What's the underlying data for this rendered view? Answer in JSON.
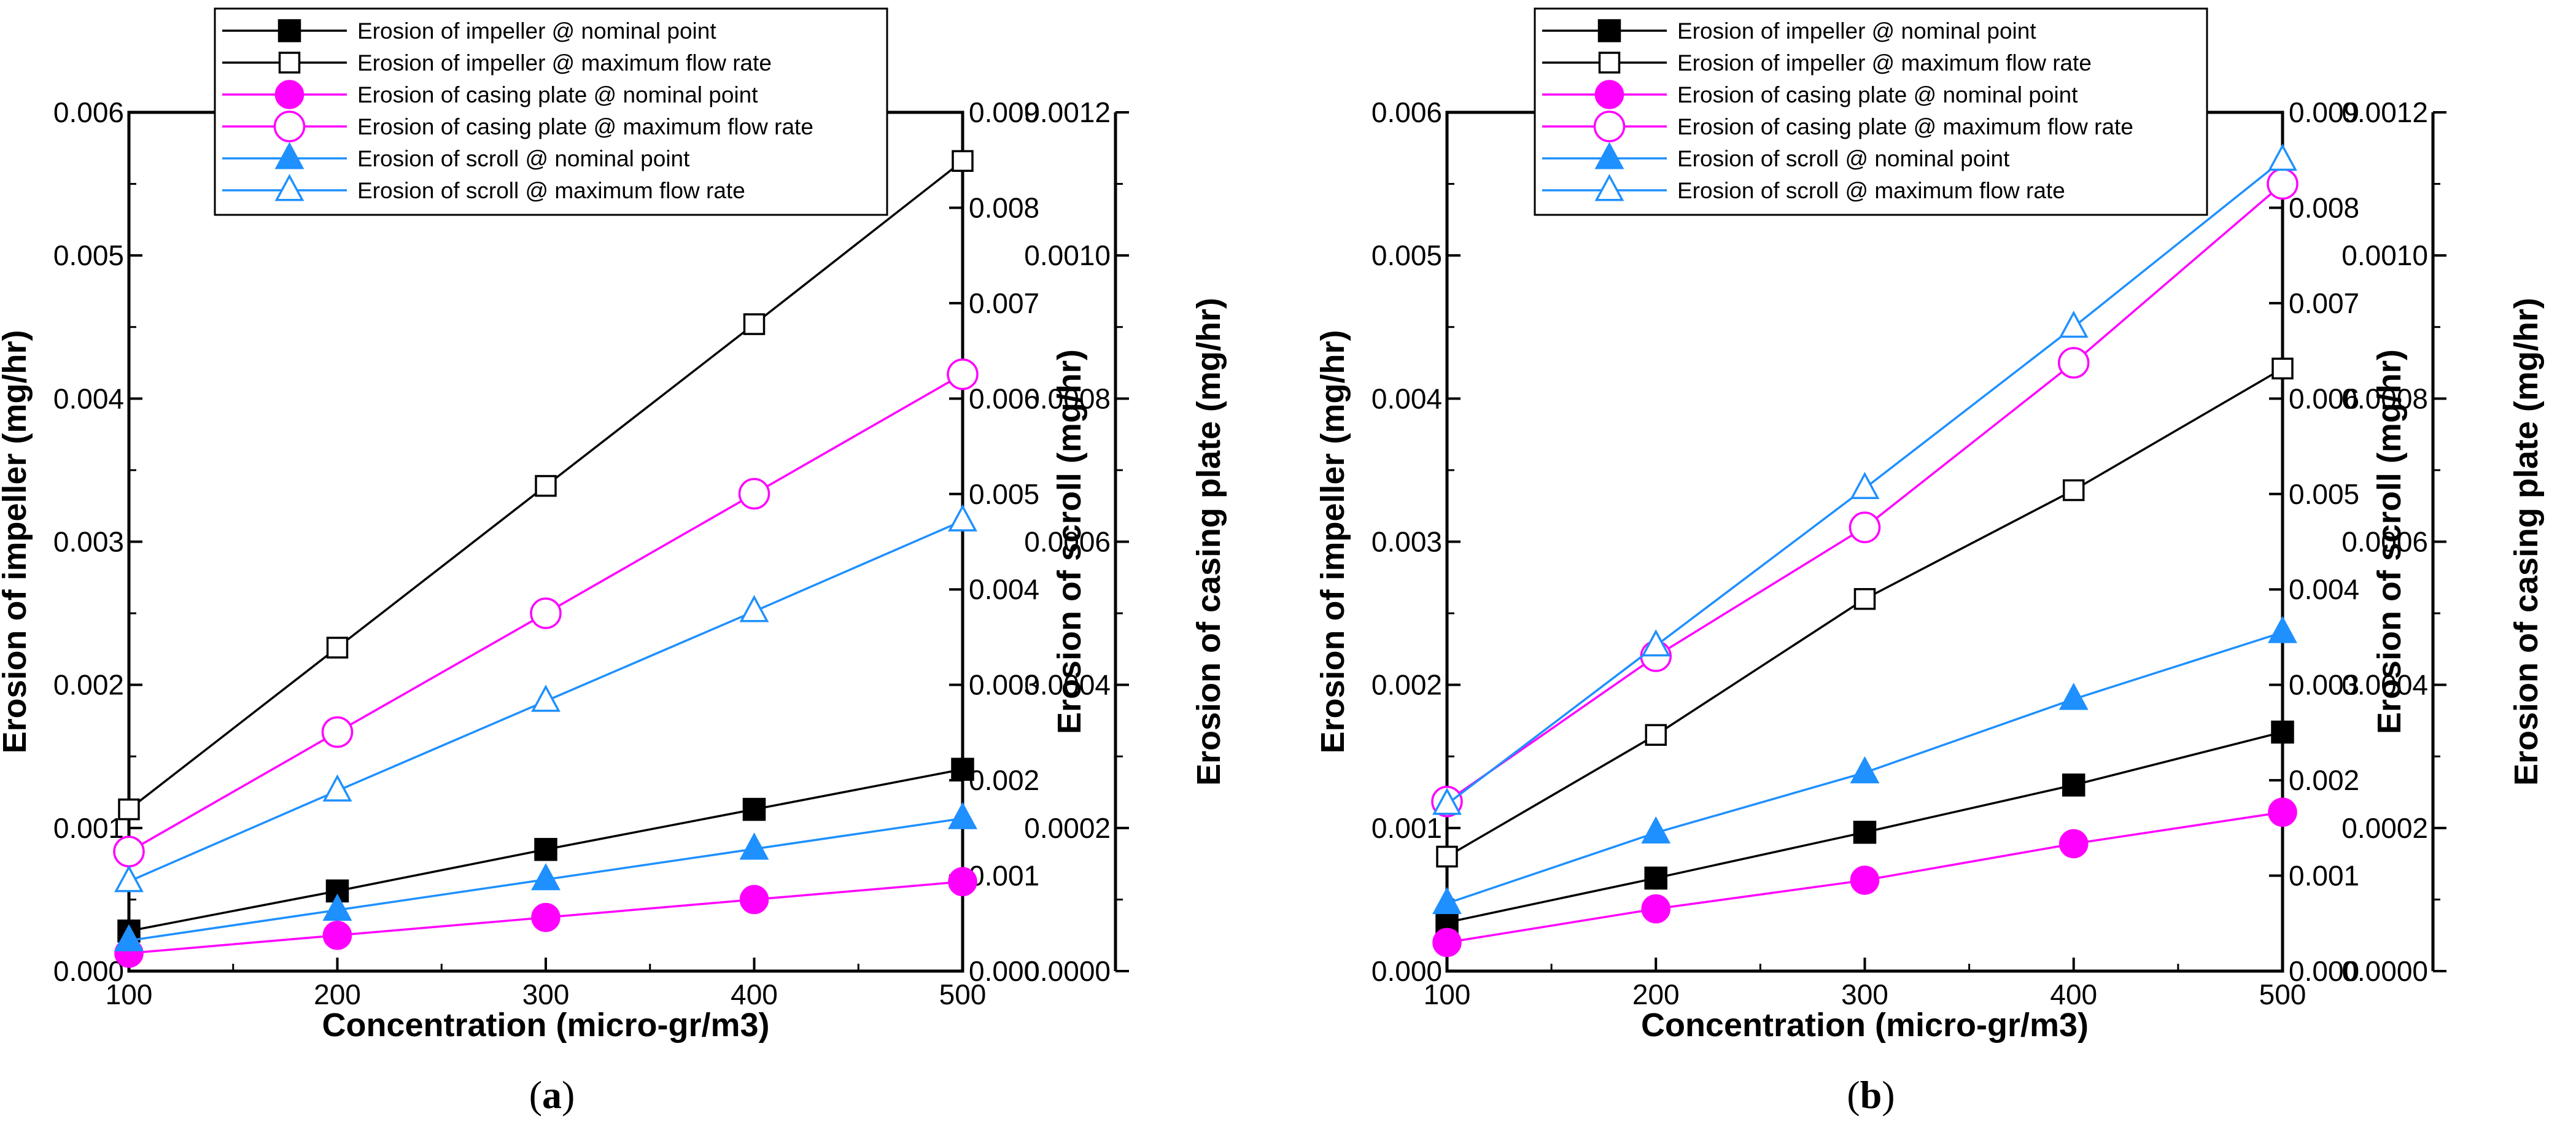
{
  "chart_data": [
    {
      "type": "line",
      "panel_label": "(a)",
      "panel_letter": "a",
      "xlabel": "Concentration (micro-gr/m3)",
      "x": [
        100,
        200,
        300,
        400,
        500
      ],
      "xticks": [
        "100",
        "200",
        "300",
        "400",
        "500"
      ],
      "xlim": [
        100,
        500
      ],
      "axes": {
        "impeller": {
          "label": "Erosion of impeller (mg/hr)",
          "lim": [
            0,
            0.006
          ],
          "ticks": [
            "0.000",
            "0.001",
            "0.002",
            "0.003",
            "0.004",
            "0.005",
            "0.006"
          ]
        },
        "scroll": {
          "label": "Erosion of scroll (mg/hr)",
          "lim": [
            0,
            0.009
          ],
          "ticks": [
            "0.000",
            "0.001",
            "0.002",
            "0.003",
            "0.004",
            "0.005",
            "0.006",
            "0.007",
            "0.008",
            "0.009"
          ]
        },
        "casing": {
          "label": "Erosion of casing plate (mg/hr)",
          "lim": [
            0,
            0.0012
          ],
          "ticks": [
            "0.0000",
            "0.0002",
            "0.0004",
            "0.0006",
            "0.0008",
            "0.0010",
            "0.0012"
          ]
        }
      },
      "series": [
        {
          "name": "Erosion of impeller @ nominal point",
          "axis": "impeller",
          "color": "#000000",
          "marker": "square",
          "filled": true,
          "values": [
            0.00028,
            0.00056,
            0.00085,
            0.00113,
            0.00141
          ]
        },
        {
          "name": "Erosion of impeller @ maximum flow rate",
          "axis": "impeller",
          "color": "#000000",
          "marker": "square",
          "filled": false,
          "values": [
            0.00113,
            0.00226,
            0.00339,
            0.00452,
            0.00566
          ]
        },
        {
          "name": "Erosion of casing plate @ nominal point",
          "axis": "casing",
          "color": "#ff00ff",
          "marker": "circle",
          "filled": true,
          "values": [
            2.5e-05,
            5e-05,
            7.5e-05,
            0.0001,
            0.000125
          ]
        },
        {
          "name": "Erosion of casing plate @ maximum flow rate",
          "axis": "casing",
          "color": "#ff00ff",
          "marker": "circle",
          "filled": false,
          "values": [
            0.000167,
            0.000334,
            0.0005,
            0.000667,
            0.000834
          ]
        },
        {
          "name": "Erosion of scroll @ nominal point",
          "axis": "scroll",
          "color": "#1e90ff",
          "marker": "triangle",
          "filled": true,
          "values": [
            0.00032,
            0.00064,
            0.00096,
            0.00128,
            0.0016
          ]
        },
        {
          "name": "Erosion of scroll @ maximum flow rate",
          "axis": "scroll",
          "color": "#1e90ff",
          "marker": "triangle",
          "filled": false,
          "values": [
            0.00094,
            0.00189,
            0.00283,
            0.00377,
            0.00472
          ]
        }
      ]
    },
    {
      "type": "line",
      "panel_label": "(b)",
      "panel_letter": "b",
      "xlabel": "Concentration (micro-gr/m3)",
      "x": [
        100,
        200,
        300,
        400,
        500
      ],
      "xticks": [
        "100",
        "200",
        "300",
        "400",
        "500"
      ],
      "xlim": [
        100,
        500
      ],
      "axes": {
        "impeller": {
          "label": "Erosion of impeller (mg/hr)",
          "lim": [
            0,
            0.006
          ],
          "ticks": [
            "0.000",
            "0.001",
            "0.002",
            "0.003",
            "0.004",
            "0.005",
            "0.006"
          ]
        },
        "scroll": {
          "label": "Erosion of scroll (mg/hr)",
          "lim": [
            0,
            0.009
          ],
          "ticks": [
            "0.000",
            "0.001",
            "0.002",
            "0.003",
            "0.004",
            "0.005",
            "0.006",
            "0.007",
            "0.008",
            "0.009"
          ]
        },
        "casing": {
          "label": "Erosion of casing plate (mg/hr)",
          "lim": [
            0,
            0.0012
          ],
          "ticks": [
            "0.0000",
            "0.0002",
            "0.0004",
            "0.0006",
            "0.0008",
            "0.0010",
            "0.0012"
          ]
        }
      },
      "series": [
        {
          "name": "Erosion of impeller @ nominal point",
          "axis": "impeller",
          "color": "#000000",
          "marker": "square",
          "filled": true,
          "values": [
            0.00034,
            0.00065,
            0.00097,
            0.0013,
            0.00167
          ]
        },
        {
          "name": "Erosion of impeller @ maximum flow rate",
          "axis": "impeller",
          "color": "#000000",
          "marker": "square",
          "filled": false,
          "values": [
            0.0008,
            0.00165,
            0.0026,
            0.00336,
            0.00421
          ]
        },
        {
          "name": "Erosion of casing plate @ nominal point",
          "axis": "casing",
          "color": "#ff00ff",
          "marker": "circle",
          "filled": true,
          "values": [
            4e-05,
            8.7e-05,
            0.000127,
            0.000178,
            0.000222
          ]
        },
        {
          "name": "Erosion of casing plate @ maximum flow rate",
          "axis": "casing",
          "color": "#ff00ff",
          "marker": "circle",
          "filled": false,
          "values": [
            0.000237,
            0.00044,
            0.00062,
            0.00085,
            0.0011
          ]
        },
        {
          "name": "Erosion of scroll @ nominal point",
          "axis": "scroll",
          "color": "#1e90ff",
          "marker": "triangle",
          "filled": true,
          "values": [
            0.00071,
            0.00145,
            0.00208,
            0.00285,
            0.00355
          ]
        },
        {
          "name": "Erosion of scroll @ maximum flow rate",
          "axis": "scroll",
          "color": "#1e90ff",
          "marker": "triangle",
          "filled": false,
          "values": [
            0.00175,
            0.00341,
            0.00506,
            0.00675,
            0.0085
          ]
        }
      ]
    }
  ]
}
